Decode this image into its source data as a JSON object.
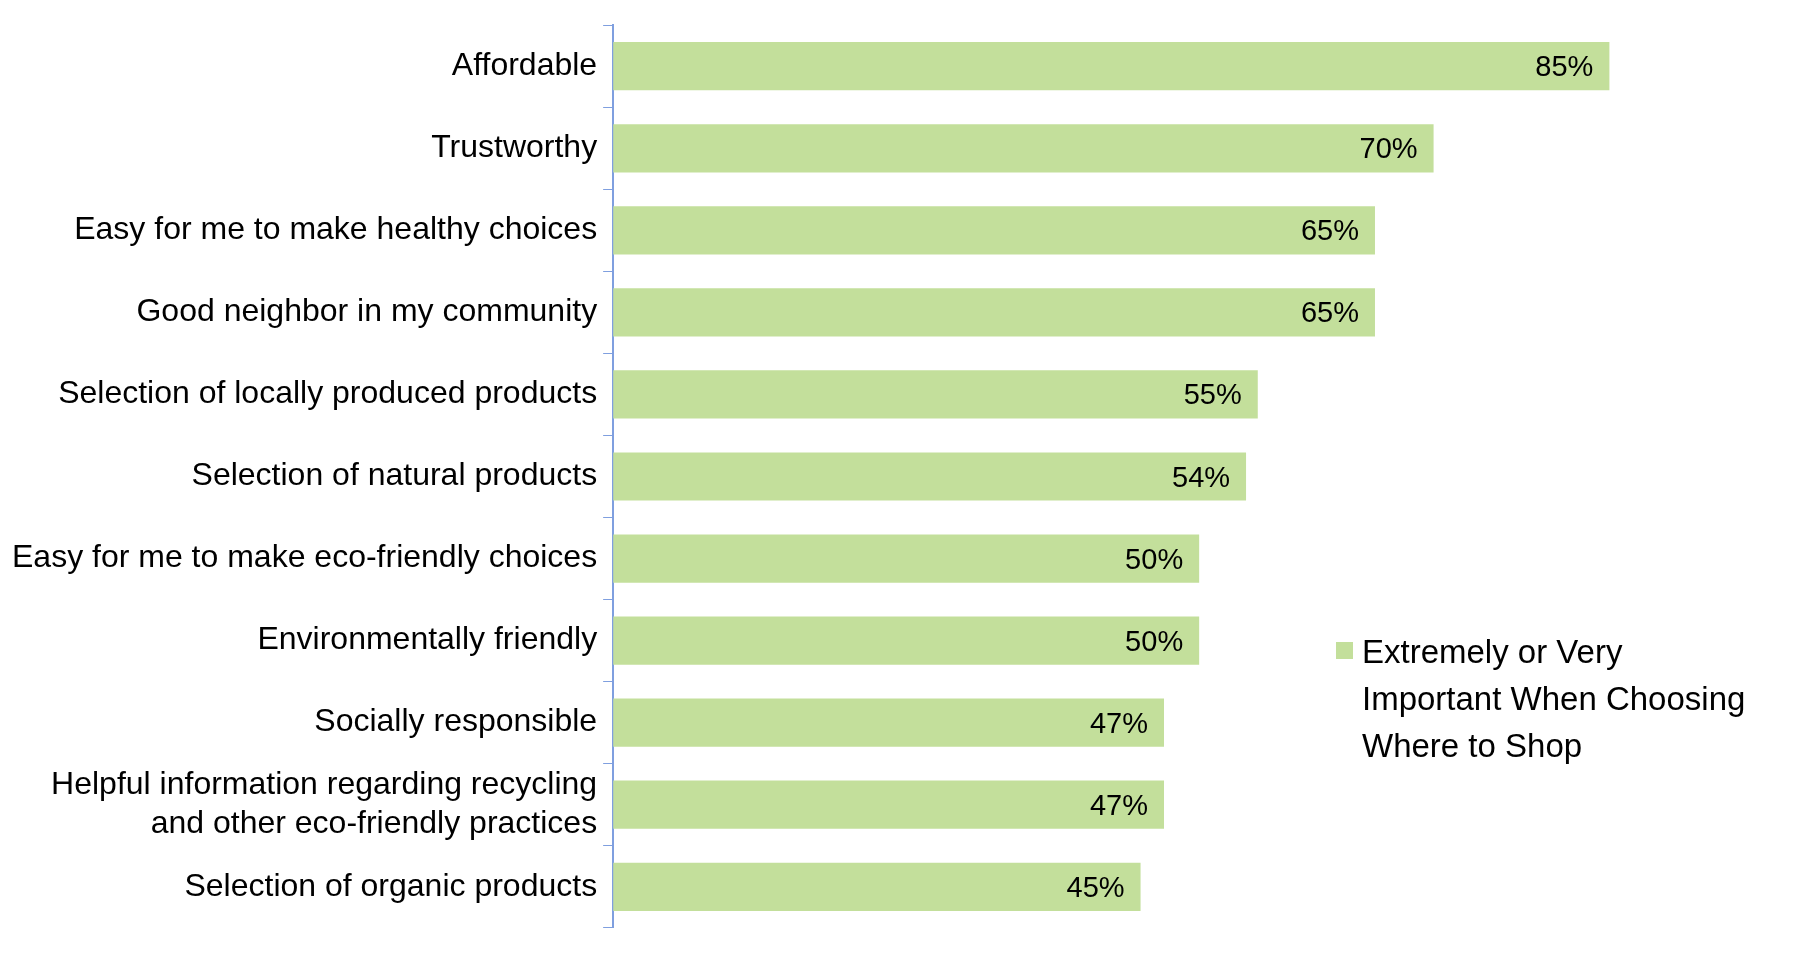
{
  "chart_data": {
    "type": "bar",
    "orientation": "horizontal",
    "tick_labels": "y",
    "legend": "right",
    "categories": [
      "Affordable",
      "Trustworthy",
      "Easy for me to make healthy choices",
      "Good neighbor in my community",
      "Selection of locally produced products",
      "Selection of natural products",
      "Easy for me to make eco-friendly choices",
      "Environmentally friendly",
      "Socially responsible",
      "Helpful information regarding recycling and other eco-friendly practices",
      "Selection of organic products"
    ],
    "series": [
      {
        "name": "Extremely or Very Important When Choosing Where to Shop",
        "color": "#c3df9b",
        "values": [
          85,
          70,
          65,
          65,
          55,
          54,
          50,
          50,
          47,
          47,
          45
        ],
        "value_labels": [
          "85%",
          "70%",
          "65%",
          "65%",
          "55%",
          "54%",
          "50%",
          "50%",
          "47%",
          "47%",
          "45%"
        ]
      }
    ]
  }
}
